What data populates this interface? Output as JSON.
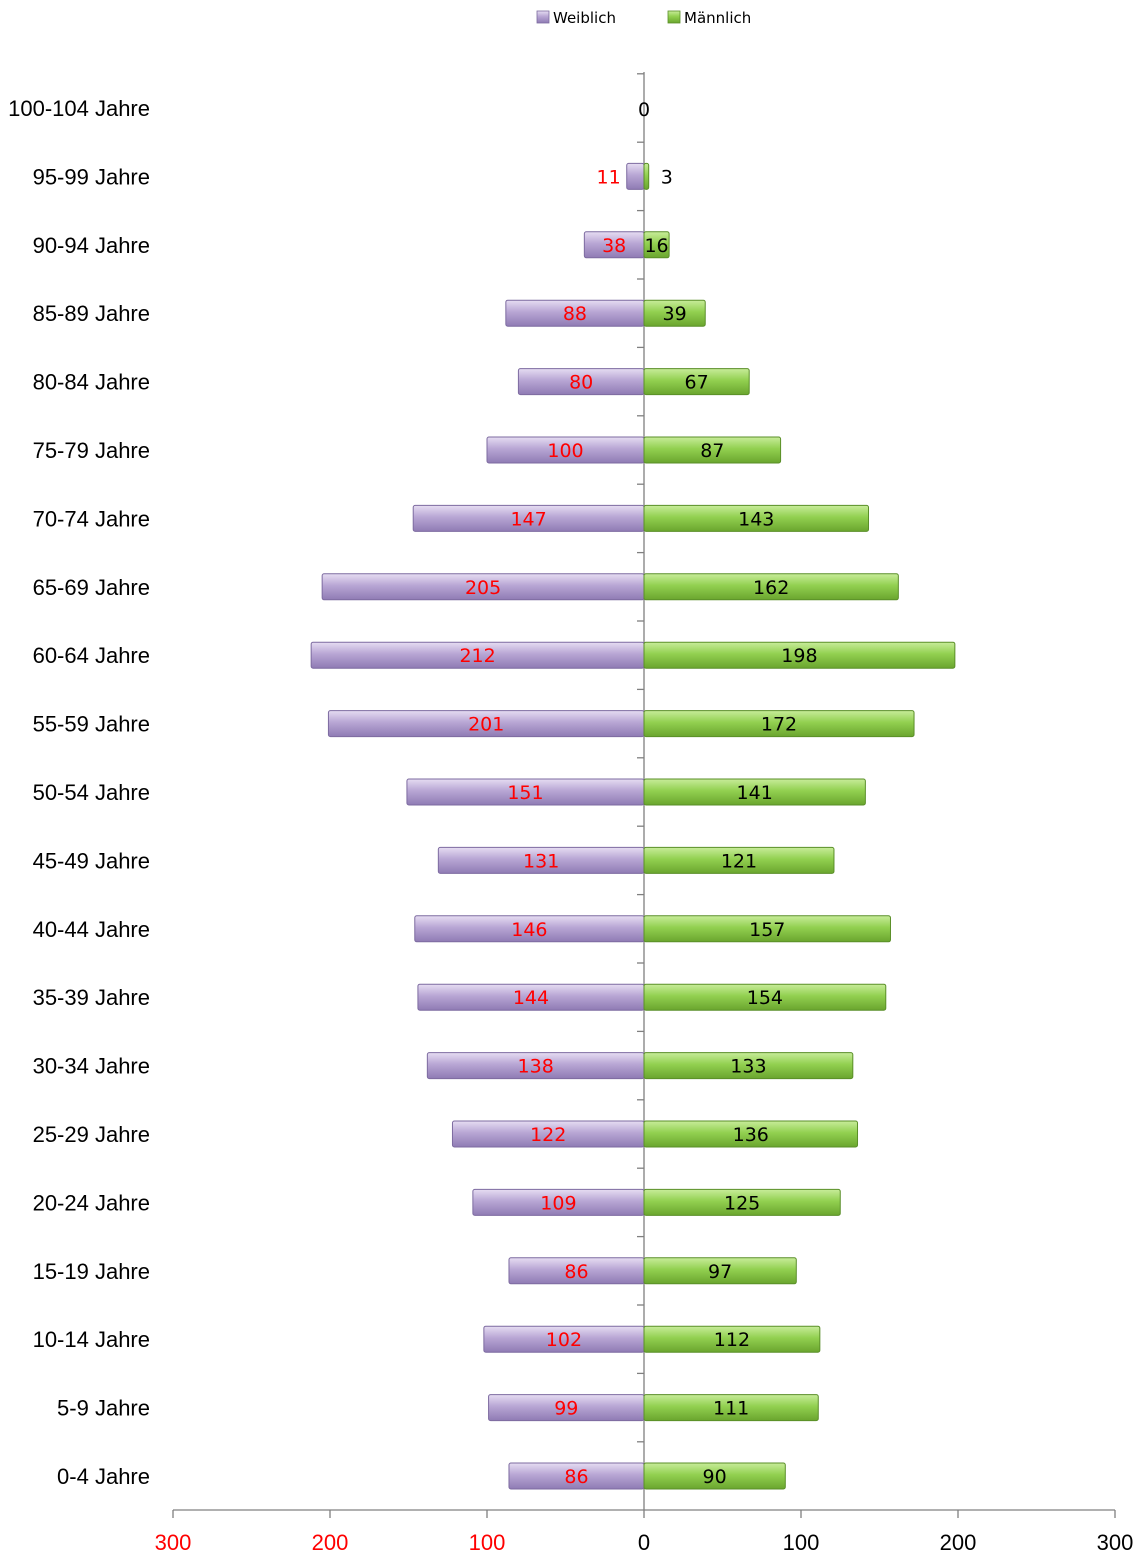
{
  "chart_data": {
    "type": "bar",
    "orientation": "horizontal",
    "layout": "population-pyramid",
    "title": "",
    "categories": [
      "0-4 Jahre",
      "5-9 Jahre",
      "10-14 Jahre",
      "15-19 Jahre",
      "20-24 Jahre",
      "25-29 Jahre",
      "30-34 Jahre",
      "35-39 Jahre",
      "40-44 Jahre",
      "45-49 Jahre",
      "50-54 Jahre",
      "55-59 Jahre",
      "60-64 Jahre",
      "65-69 Jahre",
      "70-74 Jahre",
      "75-79 Jahre",
      "80-84 Jahre",
      "85-89 Jahre",
      "90-94 Jahre",
      "95-99 Jahre",
      "100-104 Jahre"
    ],
    "series": [
      {
        "name": "Weiblich",
        "color": "#b8a6d4",
        "label_color": "#ff0000",
        "side": "left",
        "values": [
          86,
          99,
          102,
          86,
          109,
          122,
          138,
          144,
          146,
          131,
          151,
          201,
          212,
          205,
          147,
          100,
          80,
          88,
          38,
          11,
          0
        ]
      },
      {
        "name": "Männlich",
        "color": "#92d050",
        "label_color": "#000000",
        "side": "right",
        "values": [
          90,
          111,
          112,
          97,
          125,
          136,
          133,
          154,
          157,
          121,
          141,
          172,
          198,
          162,
          143,
          87,
          67,
          39,
          16,
          3,
          0
        ]
      }
    ],
    "xlim": [
      -300,
      300
    ],
    "x_ticks": [
      {
        "value": -300,
        "label": "300",
        "color": "#ff0000"
      },
      {
        "value": -200,
        "label": "200",
        "color": "#ff0000"
      },
      {
        "value": -100,
        "label": "100",
        "color": "#ff0000"
      },
      {
        "value": 0,
        "label": "0",
        "color": "#000000"
      },
      {
        "value": 100,
        "label": "100",
        "color": "#000000"
      },
      {
        "value": 200,
        "label": "200",
        "color": "#000000"
      },
      {
        "value": 300,
        "label": "300",
        "color": "#000000"
      }
    ],
    "legend": {
      "position": "top-center",
      "entries": [
        "Weiblich",
        "Männlich"
      ]
    },
    "grid": false
  }
}
